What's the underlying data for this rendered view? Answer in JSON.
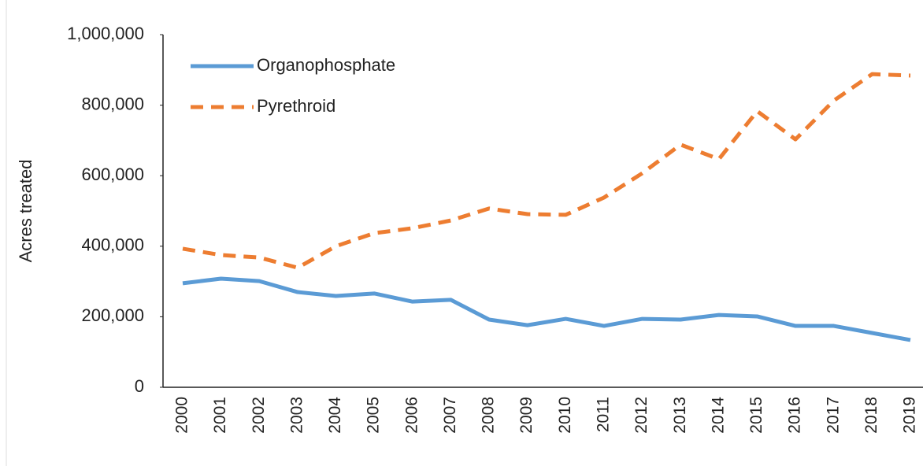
{
  "chart_data": {
    "type": "line",
    "y_label": "Acres treated",
    "categories": [
      "2000",
      "2001",
      "2002",
      "2003",
      "2004",
      "2005",
      "2006",
      "2007",
      "2008",
      "2009",
      "2010",
      "2011",
      "2012",
      "2013",
      "2014",
      "2015",
      "2016",
      "2017",
      "2018",
      "2019"
    ],
    "series": [
      {
        "name": "Organophosphate",
        "color": "#5b9bd5",
        "dash": "solid",
        "values": [
          295000,
          308000,
          301000,
          270000,
          259000,
          266000,
          243000,
          248000,
          192000,
          176000,
          194000,
          174000,
          194000,
          192000,
          205000,
          201000,
          174000,
          174000,
          154000,
          134000
        ]
      },
      {
        "name": "Pyrethroid",
        "color": "#ed7d31",
        "dash": "dashed",
        "values": [
          393000,
          375000,
          368000,
          339000,
          400000,
          437000,
          451000,
          473000,
          507000,
          491000,
          489000,
          538000,
          607000,
          688000,
          647000,
          783000,
          703000,
          813000,
          888000,
          884000
        ]
      }
    ],
    "ylim": [
      0,
      1000000
    ],
    "yticks": [
      0,
      {
        "value": 200000,
        "label": "200,000"
      },
      {
        "value": 400000,
        "label": "400,000"
      },
      {
        "value": 600000,
        "label": "600,000"
      },
      {
        "value": 800000,
        "label": "800,000"
      },
      {
        "value": 1000000,
        "label": "1,000,000"
      }
    ],
    "grid": false,
    "legend": "top-left"
  }
}
